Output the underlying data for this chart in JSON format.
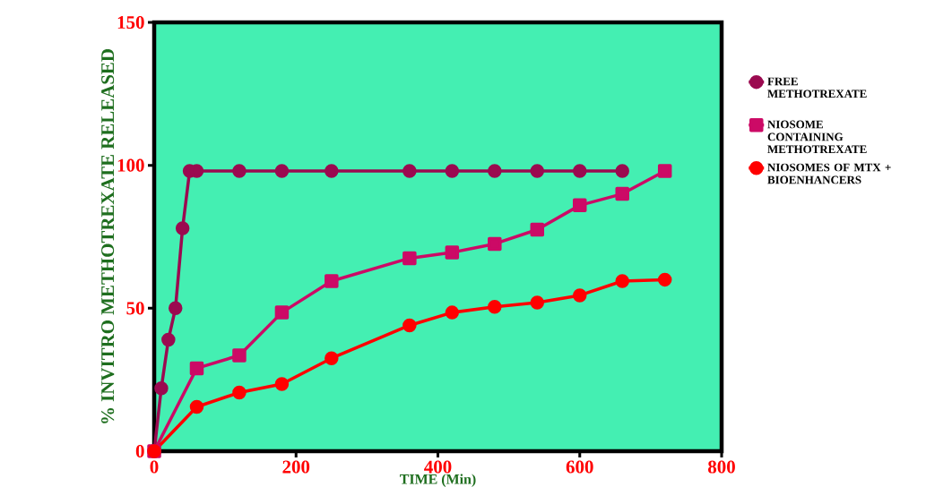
{
  "chart_data": {
    "type": "line",
    "xlabel": "TIME (Min)",
    "ylabel": "% INVITRO METHOTREXATE RELEASED",
    "xlim": [
      0,
      800
    ],
    "ylim": [
      0,
      150
    ],
    "xticks": [
      0,
      200,
      400,
      600,
      800
    ],
    "yticks": [
      0,
      50,
      100,
      150
    ],
    "legend": "right",
    "grid": false,
    "line_style": "solid",
    "series": [
      {
        "name": "FREE METHOTREXATE",
        "color": "#9b0a50",
        "marker": "circle",
        "x": [
          0,
          10,
          20,
          30,
          40,
          50,
          60,
          120,
          180,
          250,
          360,
          420,
          480,
          540,
          600,
          660
        ],
        "values": [
          0,
          22,
          39,
          50,
          78,
          98,
          98,
          98,
          98,
          98,
          98,
          98,
          98,
          98,
          98,
          98
        ]
      },
      {
        "name": "NIOSOME CONTAINING METHOTREXATE",
        "color": "#cc0a66",
        "marker": "square",
        "x": [
          0,
          60,
          120,
          180,
          250,
          360,
          420,
          480,
          540,
          600,
          660,
          720
        ],
        "values": [
          0,
          29,
          33.5,
          48.5,
          59.5,
          67.5,
          69.5,
          72.5,
          77.5,
          86,
          90,
          98
        ]
      },
      {
        "name": "NIOSOMES OF MTX + BIOENHANCERS",
        "color": "#ff0000",
        "marker": "circle",
        "x": [
          0,
          60,
          120,
          180,
          250,
          360,
          420,
          480,
          540,
          600,
          660,
          720
        ],
        "values": [
          0,
          15.5,
          20.5,
          23.5,
          32.5,
          44,
          48.5,
          50.5,
          52,
          54.5,
          59.5,
          60
        ]
      }
    ]
  }
}
